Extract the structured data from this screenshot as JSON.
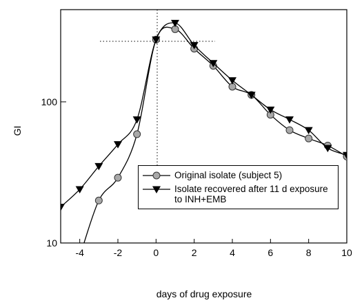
{
  "chart_data": {
    "type": "line",
    "x_label": "days of drug exposure",
    "y_label": "GI",
    "xlim": [
      -5,
      10
    ],
    "xticks": [
      -4,
      -2,
      0,
      2,
      4,
      6,
      8,
      10
    ],
    "ylim": [
      10,
      450
    ],
    "yticks": [
      10,
      100
    ],
    "log_y": true,
    "legend": "lower right",
    "series": [
      {
        "name": "Original isolate (subject 5)",
        "color": "#a8a8a8",
        "marker": "circle",
        "x": [
          -4,
          -3,
          -2,
          -1,
          0,
          1,
          2,
          3,
          4,
          5,
          6,
          7,
          8,
          9,
          10
        ],
        "values": [
          8,
          20,
          29,
          59,
          276,
          327,
          238,
          180,
          128,
          112,
          81,
          63,
          55,
          49,
          41
        ]
      },
      {
        "name": "Isolate recovered after 11 d exposure to INH+EMB",
        "color": "#000000",
        "marker": "triangle-down",
        "x": [
          -5,
          -4,
          -3,
          -2,
          -1,
          0,
          1,
          2,
          3,
          4,
          5,
          6,
          7,
          8,
          9,
          10
        ],
        "values": [
          18,
          24,
          35,
          50,
          75,
          276,
          362,
          252,
          188,
          142,
          112,
          88,
          75,
          63,
          47,
          42
        ]
      }
    ]
  }
}
